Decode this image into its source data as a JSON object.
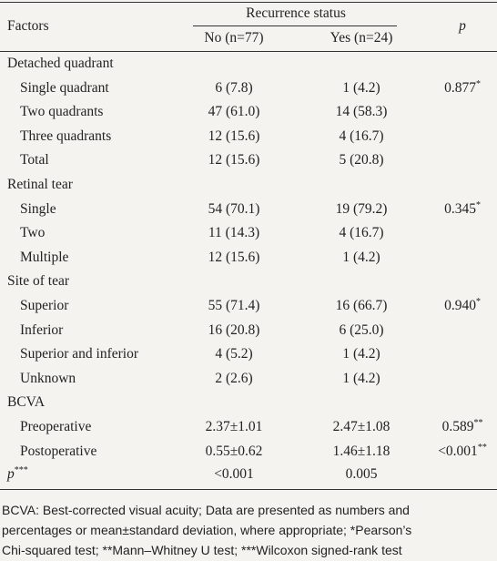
{
  "header": {
    "factors": "Factors",
    "group": "Recurrence status",
    "no": "No (n=77)",
    "yes": "Yes (n=24)",
    "p": "p"
  },
  "sections": [
    {
      "title": "Detached quadrant",
      "rows": [
        {
          "label": "Single quadrant",
          "no": "6 (7.8)",
          "yes": "1 (4.2)",
          "p": "0.877",
          "p_mark": "*"
        },
        {
          "label": "Two quadrants",
          "no": "47 (61.0)",
          "yes": "14 (58.3)"
        },
        {
          "label": "Three quadrants",
          "no": "12 (15.6)",
          "yes": "4 (16.7)"
        },
        {
          "label": "Total",
          "no": "12 (15.6)",
          "yes": "5 (20.8)"
        }
      ]
    },
    {
      "title": "Retinal tear",
      "rows": [
        {
          "label": "Single",
          "no": "54 (70.1)",
          "yes": "19 (79.2)",
          "p": "0.345",
          "p_mark": "*"
        },
        {
          "label": "Two",
          "no": "11 (14.3)",
          "yes": "4 (16.7)"
        },
        {
          "label": "Multiple",
          "no": "12 (15.6)",
          "yes": "1 (4.2)"
        }
      ]
    },
    {
      "title": "Site of tear",
      "rows": [
        {
          "label": "Superior",
          "no": "55 (71.4)",
          "yes": "16 (66.7)",
          "p": "0.940",
          "p_mark": "*"
        },
        {
          "label": "Inferior",
          "no": "16 (20.8)",
          "yes": "6 (25.0)"
        },
        {
          "label": "Superior and inferior",
          "no": "4 (5.2)",
          "yes": "1 (4.2)"
        },
        {
          "label": "Unknown",
          "no": "2 (2.6)",
          "yes": "1 (4.2)"
        }
      ]
    },
    {
      "title": "BCVA",
      "rows": [
        {
          "label": "Preoperative",
          "no": "2.37±1.01",
          "yes": "2.47±1.08",
          "p": "0.589",
          "p_mark": "**"
        },
        {
          "label": "Postoperative",
          "no": "0.55±0.62",
          "yes": "1.46±1.18",
          "p": "<0.001",
          "p_mark": "**"
        }
      ]
    }
  ],
  "summary_row": {
    "label": "p",
    "label_mark": "***",
    "no": "<0.001",
    "yes": "0.005"
  },
  "footnote": [
    "BCVA: Best-corrected visual acuity; Data are presented as numbers and",
    "percentages or mean±standard deviation, where appropriate; *Pearson’s",
    "Chi-squared test; **Mann–Whitney U test; ***Wilcoxon signed-rank test"
  ]
}
